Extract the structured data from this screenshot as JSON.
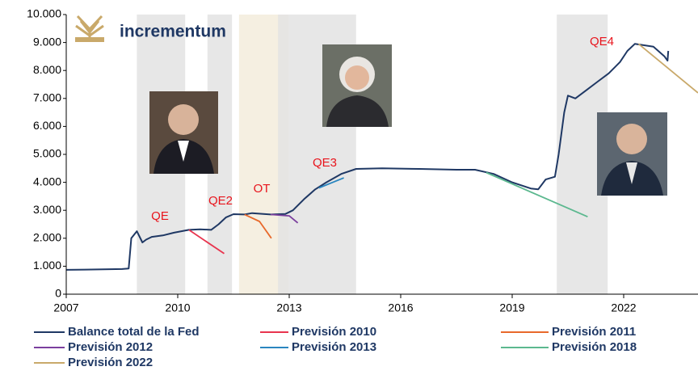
{
  "chart_data": {
    "type": "line",
    "logo_text": "incrementum",
    "xlim": [
      2007,
      2024
    ],
    "xticks": [
      2007,
      2010,
      2013,
      2016,
      2019,
      2022
    ],
    "ylim": [
      0,
      10000
    ],
    "yticks": [
      0,
      {
        "value": 1000,
        "label": "1.000"
      },
      {
        "value": 2000,
        "label": "2.000"
      },
      {
        "value": 3000,
        "label": "3.000"
      },
      {
        "value": 4000,
        "label": "4.000"
      },
      {
        "value": 5000,
        "label": "5.000"
      },
      {
        "value": 6000,
        "label": "6.000"
      },
      {
        "value": 7000,
        "label": "7.000"
      },
      {
        "value": 8000,
        "label": "8.000"
      },
      {
        "value": 9000,
        "label": "9.000"
      },
      {
        "value": 10000,
        "label": "10.000"
      }
    ],
    "grid": false,
    "shaded_periods": [
      {
        "start": 2008.9,
        "end": 2010.2,
        "color": "#e3e3e3"
      },
      {
        "start": 2010.8,
        "end": 2011.46,
        "color": "#e3e3e3"
      },
      {
        "start": 2011.65,
        "end": 2012.98,
        "color": "#f3ecdc"
      },
      {
        "start": 2012.7,
        "end": 2014.8,
        "color": "#e3e3e3"
      },
      {
        "start": 2020.2,
        "end": 2021.57,
        "color": "#e3e3e3"
      }
    ],
    "annotations": [
      "QE",
      "QE2",
      "OT",
      "QE3",
      "QE4"
    ],
    "series": [
      {
        "name": "Balance total de la Fed",
        "color": "#1f3864",
        "x": [
          2007.0,
          2007.5,
          2008.0,
          2008.5,
          2008.68,
          2008.75,
          2008.9,
          2009.05,
          2009.15,
          2009.3,
          2009.6,
          2009.9,
          2010.3,
          2010.6,
          2010.9,
          2011.1,
          2011.3,
          2011.5,
          2011.8,
          2012.0,
          2012.5,
          2012.9,
          2013.1,
          2013.4,
          2013.7,
          2014.0,
          2014.4,
          2014.8,
          2015.5,
          2016.5,
          2017.5,
          2018.0,
          2018.5,
          2019.0,
          2019.5,
          2019.7,
          2019.9,
          2020.15,
          2020.25,
          2020.4,
          2020.5,
          2020.7,
          2021.0,
          2021.3,
          2021.6,
          2021.9,
          2022.1,
          2022.3,
          2022.8,
          2023.1,
          2023.18,
          2023.2
        ],
        "values": [
          870,
          880,
          890,
          900,
          920,
          2000,
          2250,
          1850,
          1950,
          2050,
          2100,
          2200,
          2300,
          2320,
          2300,
          2500,
          2750,
          2860,
          2850,
          2900,
          2850,
          2870,
          3000,
          3400,
          3750,
          4000,
          4300,
          4480,
          4500,
          4480,
          4450,
          4450,
          4300,
          4000,
          3780,
          3750,
          4100,
          4200,
          5000,
          6500,
          7100,
          7000,
          7300,
          7600,
          7900,
          8300,
          8700,
          8950,
          8850,
          8500,
          8350,
          8700
        ]
      },
      {
        "name": "Previsión 2010",
        "color": "#e8344e",
        "x": [
          2010.3,
          2011.25
        ],
        "values": [
          2300,
          1450
        ]
      },
      {
        "name": "Previsión 2011",
        "color": "#e8692b",
        "x": [
          2011.8,
          2012.2,
          2012.52
        ],
        "values": [
          2850,
          2600,
          2000
        ]
      },
      {
        "name": "Previsión 2012",
        "color": "#7b3f9e",
        "x": [
          2012.5,
          2013.0,
          2013.23
        ],
        "values": [
          2850,
          2800,
          2550
        ]
      },
      {
        "name": "Previsión 2013",
        "color": "#2a86c0",
        "x": [
          2013.8,
          2014.47
        ],
        "values": [
          3800,
          4160
        ]
      },
      {
        "name": "Previsión 2018",
        "color": "#5cb88f",
        "x": [
          2018.3,
          2021.03
        ],
        "values": [
          4350,
          2770
        ]
      },
      {
        "name": "Previsión 2022",
        "color": "#c9a96a",
        "x": [
          2022.4,
          2024.0
        ],
        "values": [
          8950,
          7200
        ]
      }
    ]
  }
}
